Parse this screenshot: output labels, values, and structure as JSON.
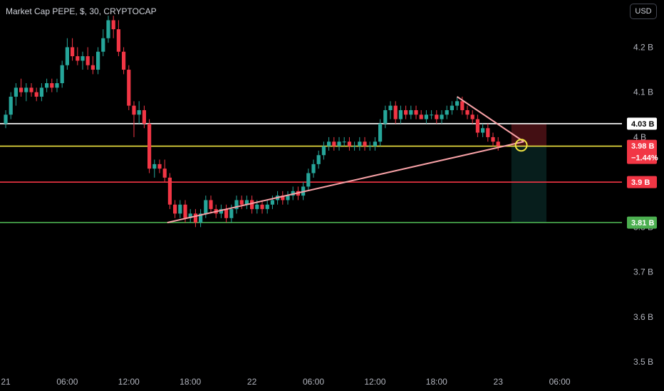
{
  "header": {
    "title": "Market Cap PEPE, $, 30, CRYPTOCAP",
    "currency_button": "USD"
  },
  "colors": {
    "background": "#000000",
    "bull": "#26a69a",
    "bear": "#f23645",
    "white_line": "#ffffff",
    "yellow_line": "#f0e442",
    "red_line": "#f23645",
    "green_line": "#4caf50",
    "trend_line": "#f7a1a6"
  },
  "chart_data": {
    "type": "candlestick",
    "ylim": [
      3.475,
      4.305
    ],
    "y_ticks": [
      {
        "value": 4.2,
        "label": "4.2 B"
      },
      {
        "value": 4.1,
        "label": "4.1 B"
      },
      {
        "value": 4.0,
        "label": "4 B"
      },
      {
        "value": 3.8,
        "label": "3.8 B"
      },
      {
        "value": 3.7,
        "label": "3.7 B"
      },
      {
        "value": 3.6,
        "label": "3.6 B"
      },
      {
        "value": 3.5,
        "label": "3.5 B"
      }
    ],
    "x_ticks": [
      {
        "index": 0,
        "label": "21"
      },
      {
        "index": 12,
        "label": "06:00"
      },
      {
        "index": 24,
        "label": "12:00"
      },
      {
        "index": 36,
        "label": "18:00"
      },
      {
        "index": 48,
        "label": "22"
      },
      {
        "index": 60,
        "label": "06:00"
      },
      {
        "index": 72,
        "label": "12:00"
      },
      {
        "index": 84,
        "label": "18:00"
      },
      {
        "index": 96,
        "label": "23"
      },
      {
        "index": 108,
        "label": "06:00"
      }
    ],
    "candles": [
      [
        4.03,
        4.06,
        4.02,
        4.05
      ],
      [
        4.05,
        4.1,
        4.04,
        4.09
      ],
      [
        4.09,
        4.12,
        4.07,
        4.11
      ],
      [
        4.11,
        4.13,
        4.09,
        4.1
      ],
      [
        4.1,
        4.12,
        4.08,
        4.11
      ],
      [
        4.11,
        4.12,
        4.09,
        4.1
      ],
      [
        4.1,
        4.11,
        4.08,
        4.09
      ],
      [
        4.09,
        4.12,
        4.08,
        4.11
      ],
      [
        4.11,
        4.13,
        4.1,
        4.12
      ],
      [
        4.12,
        4.13,
        4.1,
        4.11
      ],
      [
        4.11,
        4.13,
        4.1,
        4.12
      ],
      [
        4.12,
        4.17,
        4.11,
        4.16
      ],
      [
        4.16,
        4.22,
        4.15,
        4.2
      ],
      [
        4.2,
        4.22,
        4.17,
        4.18
      ],
      [
        4.18,
        4.2,
        4.16,
        4.17
      ],
      [
        4.17,
        4.19,
        4.15,
        4.18
      ],
      [
        4.18,
        4.2,
        4.15,
        4.16
      ],
      [
        4.16,
        4.18,
        4.14,
        4.15
      ],
      [
        4.15,
        4.2,
        4.14,
        4.19
      ],
      [
        4.19,
        4.24,
        4.18,
        4.22
      ],
      [
        4.22,
        4.27,
        4.21,
        4.26
      ],
      [
        4.26,
        4.27,
        4.22,
        4.24
      ],
      [
        4.24,
        4.26,
        4.18,
        4.19
      ],
      [
        4.19,
        4.2,
        4.14,
        4.15
      ],
      [
        4.15,
        4.16,
        4.06,
        4.07
      ],
      [
        4.07,
        4.08,
        4.0,
        4.05
      ],
      [
        4.05,
        4.08,
        4.03,
        4.06
      ],
      [
        4.06,
        4.07,
        4.02,
        4.03
      ],
      [
        4.03,
        4.04,
        3.92,
        3.93
      ],
      [
        3.93,
        3.95,
        3.91,
        3.94
      ],
      [
        3.94,
        3.95,
        3.92,
        3.93
      ],
      [
        3.93,
        3.95,
        3.9,
        3.91
      ],
      [
        3.91,
        3.92,
        3.84,
        3.85
      ],
      [
        3.85,
        3.86,
        3.82,
        3.83
      ],
      [
        3.83,
        3.86,
        3.82,
        3.85
      ],
      [
        3.85,
        3.86,
        3.81,
        3.82
      ],
      [
        3.82,
        3.84,
        3.81,
        3.83
      ],
      [
        3.83,
        3.84,
        3.8,
        3.81
      ],
      [
        3.81,
        3.84,
        3.8,
        3.83
      ],
      [
        3.83,
        3.87,
        3.82,
        3.86
      ],
      [
        3.86,
        3.87,
        3.83,
        3.84
      ],
      [
        3.84,
        3.85,
        3.82,
        3.83
      ],
      [
        3.83,
        3.85,
        3.82,
        3.84
      ],
      [
        3.84,
        3.85,
        3.81,
        3.82
      ],
      [
        3.82,
        3.85,
        3.81,
        3.84
      ],
      [
        3.84,
        3.87,
        3.83,
        3.86
      ],
      [
        3.86,
        3.87,
        3.84,
        3.85
      ],
      [
        3.85,
        3.87,
        3.84,
        3.86
      ],
      [
        3.86,
        3.87,
        3.83,
        3.84
      ],
      [
        3.84,
        3.86,
        3.83,
        3.85
      ],
      [
        3.85,
        3.86,
        3.83,
        3.84
      ],
      [
        3.84,
        3.86,
        3.83,
        3.85
      ],
      [
        3.85,
        3.87,
        3.84,
        3.86
      ],
      [
        3.86,
        3.88,
        3.85,
        3.87
      ],
      [
        3.87,
        3.88,
        3.85,
        3.86
      ],
      [
        3.86,
        3.88,
        3.85,
        3.87
      ],
      [
        3.87,
        3.89,
        3.86,
        3.88
      ],
      [
        3.88,
        3.89,
        3.86,
        3.87
      ],
      [
        3.87,
        3.9,
        3.86,
        3.89
      ],
      [
        3.89,
        3.93,
        3.88,
        3.92
      ],
      [
        3.92,
        3.95,
        3.91,
        3.94
      ],
      [
        3.94,
        3.97,
        3.93,
        3.96
      ],
      [
        3.96,
        3.99,
        3.95,
        3.98
      ],
      [
        3.98,
        4.0,
        3.97,
        3.99
      ],
      [
        3.99,
        4.0,
        3.97,
        3.98
      ],
      [
        3.98,
        4.0,
        3.97,
        3.99
      ],
      [
        3.99,
        4.0,
        3.98,
        3.99
      ],
      [
        3.99,
        4.0,
        3.97,
        3.98
      ],
      [
        3.98,
        3.99,
        3.97,
        3.98
      ],
      [
        3.98,
        4.0,
        3.97,
        3.99
      ],
      [
        3.99,
        4.0,
        3.97,
        3.98
      ],
      [
        3.98,
        3.99,
        3.97,
        3.98
      ],
      [
        3.98,
        4.0,
        3.97,
        3.99
      ],
      [
        3.99,
        4.04,
        3.98,
        4.03
      ],
      [
        4.03,
        4.07,
        4.02,
        4.06
      ],
      [
        4.06,
        4.08,
        4.04,
        4.07
      ],
      [
        4.07,
        4.08,
        4.03,
        4.04
      ],
      [
        4.04,
        4.07,
        4.03,
        4.06
      ],
      [
        4.06,
        4.07,
        4.04,
        4.05
      ],
      [
        4.05,
        4.07,
        4.04,
        4.06
      ],
      [
        4.06,
        4.07,
        4.04,
        4.05
      ],
      [
        4.05,
        4.06,
        4.04,
        4.04
      ],
      [
        4.04,
        4.06,
        4.03,
        4.05
      ],
      [
        4.05,
        4.06,
        4.04,
        4.05
      ],
      [
        4.05,
        4.06,
        4.03,
        4.04
      ],
      [
        4.04,
        4.06,
        4.03,
        4.05
      ],
      [
        4.05,
        4.07,
        4.04,
        4.06
      ],
      [
        4.06,
        4.08,
        4.05,
        4.07
      ],
      [
        4.07,
        4.09,
        4.06,
        4.08
      ],
      [
        4.08,
        4.09,
        4.05,
        4.06
      ],
      [
        4.06,
        4.07,
        4.04,
        4.05
      ],
      [
        4.05,
        4.06,
        4.03,
        4.04
      ],
      [
        4.04,
        4.05,
        4.0,
        4.01
      ],
      [
        4.01,
        4.03,
        4.0,
        4.02
      ],
      [
        4.02,
        4.03,
        3.99,
        4.0
      ],
      [
        4.0,
        4.01,
        3.98,
        3.99
      ],
      [
        3.99,
        4.0,
        3.97,
        3.98
      ]
    ],
    "horizontal_lines": [
      {
        "value": 4.03,
        "label": "4.03 B",
        "color": "#ffffff",
        "tag_bg": "#ffffff",
        "tag_text": "#000000"
      },
      {
        "value": 3.98,
        "label": "3.98 B",
        "sublabel": "−1.44%",
        "color": "#f0e442",
        "tag_bg": "#f23645",
        "tag_text": "#ffffff"
      },
      {
        "value": 3.9,
        "label": "3.9 B",
        "color": "#f23645",
        "tag_bg": "#f23645",
        "tag_text": "#ffffff"
      },
      {
        "value": 3.81,
        "label": "3.81 B",
        "color": "#4caf50",
        "tag_bg": "#4caf50",
        "tag_text": "#ffffff"
      }
    ],
    "trend_lines": [
      {
        "from": [
          31.5,
          3.81
        ],
        "to": [
          101,
          3.99
        ],
        "color": "#f7a1a6"
      },
      {
        "from": [
          88,
          4.09
        ],
        "to": [
          101,
          3.99
        ],
        "color": "#f7a1a6"
      }
    ],
    "position_box": {
      "from_index": 99,
      "to_index": 105,
      "entry": 3.98,
      "stop": 4.03,
      "target": 3.81
    },
    "highlight_circle": {
      "index": 100.5,
      "value": 3.982
    }
  }
}
